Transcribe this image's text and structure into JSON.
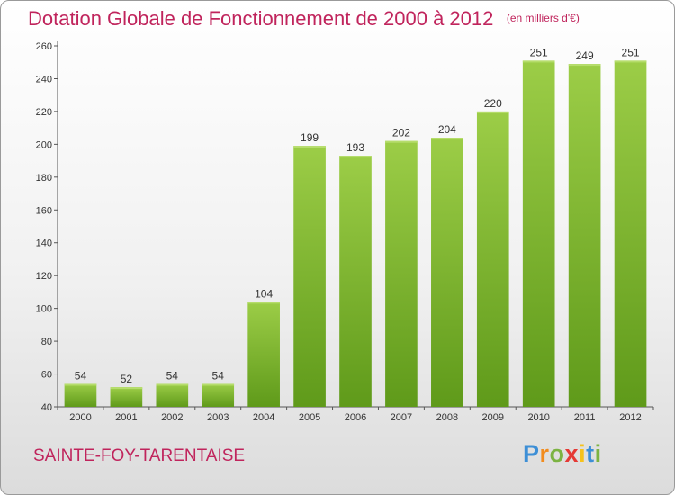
{
  "chart_data": {
    "type": "bar",
    "title": "Dotation Globale de Fonctionnement de 2000 à 2012",
    "unit": "(en milliers d'€)",
    "categories": [
      "2000",
      "2001",
      "2002",
      "2003",
      "2004",
      "2005",
      "2006",
      "2007",
      "2008",
      "2009",
      "2010",
      "2011",
      "2012"
    ],
    "values": [
      54,
      52,
      54,
      54,
      104,
      199,
      193,
      202,
      204,
      220,
      251,
      249,
      251
    ],
    "ylim": [
      40,
      260
    ],
    "yticks": [
      40,
      60,
      80,
      100,
      120,
      140,
      160,
      180,
      200,
      220,
      240,
      260
    ],
    "grid": false,
    "bar_color_top": "#9ccd47",
    "bar_color_bottom": "#5f9a1a"
  },
  "commune": "SAINTE-FOY-TARENTAISE",
  "logo": {
    "letters": [
      "P",
      "r",
      "o",
      "x",
      "i",
      "t",
      "i"
    ],
    "colors": [
      "#3d8fd6",
      "#f28c1e",
      "#7cb342",
      "#e53935",
      "#f6c21b",
      "#3d8fd6",
      "#7cb342"
    ]
  },
  "colors": {
    "title": "#c0245c",
    "axis": "#555555"
  }
}
